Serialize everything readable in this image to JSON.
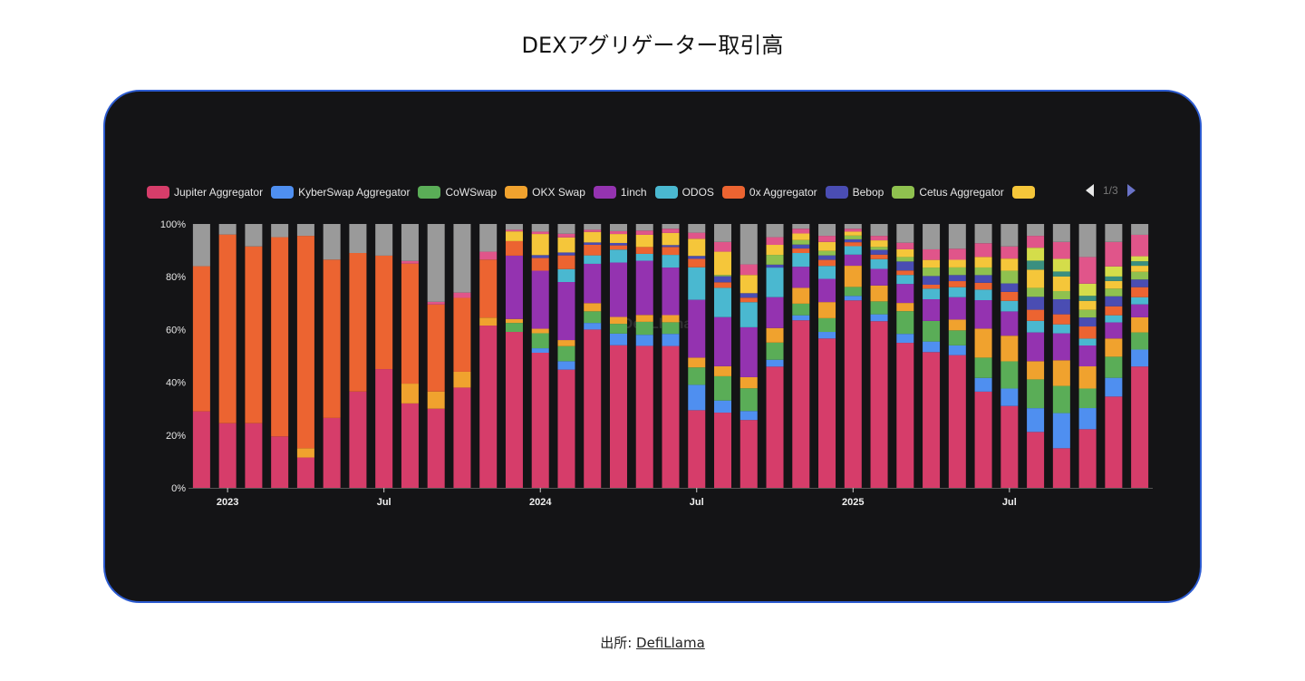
{
  "page": {
    "title": "DEXアグリゲーター取引高",
    "source_label": "出所:",
    "source_link": "DefiLlama"
  },
  "legend": {
    "page_indicator": "1/3",
    "items": [
      {
        "label": "Jupiter Aggregator",
        "color": "#d63d6a"
      },
      {
        "label": "KyberSwap Aggregator",
        "color": "#4f8ff0"
      },
      {
        "label": "CoWSwap",
        "color": "#5aad57"
      },
      {
        "label": "OKX Swap",
        "color": "#f0a22e"
      },
      {
        "label": "1inch",
        "color": "#9433b0"
      },
      {
        "label": "ODOS",
        "color": "#4ab8d0"
      },
      {
        "label": "0x Aggregator",
        "color": "#ec6431"
      },
      {
        "label": "Bebop",
        "color": "#4a4db3"
      },
      {
        "label": "Cetus Aggregator",
        "color": "#8fc14f"
      },
      {
        "label": "",
        "color": "#f5c63a"
      }
    ]
  },
  "chart_data": {
    "type": "bar",
    "stacked": true,
    "normalized_percent": true,
    "x": [
      "2022-12",
      "2023-01",
      "2023-02",
      "2023-03",
      "2023-04",
      "2023-05",
      "2023-06",
      "2023-07",
      "2023-08",
      "2023-09",
      "2023-10",
      "2023-11",
      "2023-12",
      "2024-01",
      "2024-02",
      "2024-03",
      "2024-04",
      "2024-05",
      "2024-06",
      "2024-07",
      "2024-08",
      "2024-09",
      "2024-10",
      "2024-11",
      "2024-12",
      "2025-01",
      "2025-02",
      "2025-03",
      "2025-04",
      "2025-05",
      "2025-06",
      "2025-07",
      "2025-08",
      "2025-09",
      "2025-10",
      "2025-11",
      "2025-12"
    ],
    "x_tick_labels": [
      {
        "at": "2023-01",
        "label": "2023"
      },
      {
        "at": "2023-07",
        "label": "Jul"
      },
      {
        "at": "2024-01",
        "label": "2024"
      },
      {
        "at": "2024-07",
        "label": "Jul"
      },
      {
        "at": "2025-01",
        "label": "2025"
      },
      {
        "at": "2025-07",
        "label": "Jul"
      }
    ],
    "y_tick_labels": [
      "0%",
      "20%",
      "40%",
      "60%",
      "80%",
      "100%"
    ],
    "ylim": [
      0,
      100
    ],
    "grid": false,
    "legend_position": "top",
    "series": [
      {
        "name": "Jupiter Aggregator",
        "color": "#d63d6a",
        "values": [
          29,
          24.5,
          24.5,
          19.5,
          11.5,
          26.5,
          36.5,
          45,
          32,
          30,
          38,
          61.5,
          59.1,
          51.2,
          44.8,
          60,
          54,
          53.7,
          53.7,
          29.4,
          28.5,
          25.7,
          45.9,
          63.5,
          56.6,
          70.9,
          63.1,
          54.9,
          51.4,
          50.4,
          36.5,
          31,
          21.2,
          15,
          22.2,
          34.6,
          45.9
        ]
      },
      {
        "name": "KyberSwap Aggregator",
        "color": "#4f8ff0",
        "values": [
          0,
          0,
          0,
          0,
          0,
          0,
          0,
          0,
          0,
          0,
          0,
          0,
          0,
          1.7,
          3.2,
          2.5,
          4.4,
          4.2,
          4.6,
          9.6,
          4.6,
          3.4,
          2.6,
          1.9,
          2.5,
          1.7,
          2.6,
          3.4,
          4,
          3.7,
          5.2,
          6.6,
          9,
          13.3,
          8,
          7.1,
          6.4
        ]
      },
      {
        "name": "CoWSwap",
        "color": "#5aad57",
        "values": [
          0,
          0,
          0,
          0,
          0,
          0,
          0,
          0,
          0,
          0,
          0,
          0,
          3.4,
          5.7,
          5.7,
          4.4,
          3.7,
          4.9,
          4.4,
          6.6,
          9.2,
          8.6,
          6.5,
          4.4,
          5.2,
          3.4,
          4.9,
          8.6,
          7.8,
          5.7,
          7.7,
          10.3,
          10.9,
          10.3,
          7.4,
          8,
          6.5
        ]
      },
      {
        "name": "OKX Swap",
        "color": "#f0a22e",
        "values": [
          0,
          0,
          0,
          0,
          3.5,
          0,
          0,
          0,
          7.5,
          6.5,
          6,
          3,
          1.5,
          1.7,
          2.3,
          3.1,
          2.6,
          2.6,
          2.7,
          3.7,
          3.8,
          4.2,
          5.5,
          6,
          6.1,
          8,
          6,
          3.1,
          0,
          4.1,
          11,
          9.7,
          6.9,
          9.7,
          8.4,
          6.9,
          5.7
        ]
      },
      {
        "name": "1inch",
        "color": "#9433b0",
        "values": [
          0,
          0,
          0,
          0,
          0,
          0,
          0,
          0,
          0,
          0,
          0,
          0,
          24,
          22,
          22,
          14.9,
          20.6,
          20.5,
          18,
          21.9,
          18.6,
          18.9,
          11.7,
          8,
          8.8,
          4.2,
          6.3,
          7.2,
          8.2,
          8.5,
          10.8,
          9.2,
          10.9,
          10.2,
          7.9,
          6.1,
          4.9
        ]
      },
      {
        "name": "ODOS",
        "color": "#4ab8d0",
        "values": [
          0,
          0,
          0,
          0,
          0,
          0,
          0,
          0,
          0,
          0,
          0,
          0,
          0,
          0,
          4.9,
          3.2,
          4.9,
          2.6,
          4.8,
          12.3,
          11.1,
          9.5,
          11.2,
          5.2,
          4.9,
          3.2,
          3.7,
          3.4,
          4,
          3.8,
          4,
          4,
          4.4,
          3.4,
          2.6,
          2.7,
          2.7
        ]
      },
      {
        "name": "0x Aggregator",
        "color": "#ec6431",
        "values": [
          55,
          71.5,
          67,
          75.5,
          80.5,
          60,
          52.5,
          43,
          45.5,
          33,
          28,
          22,
          5.5,
          4.8,
          5.2,
          4,
          1.6,
          2.6,
          3,
          3.2,
          2.1,
          1.7,
          0,
          1.7,
          2.3,
          1.5,
          1.7,
          1.7,
          1.5,
          2.3,
          2.6,
          3.4,
          4.2,
          3.8,
          4.6,
          3.4,
          3.8
        ]
      },
      {
        "name": "Bebop",
        "color": "#4a4db3",
        "values": [
          0,
          0,
          0,
          0,
          0,
          0,
          0,
          0,
          0,
          0,
          0,
          0,
          0,
          1.1,
          1.1,
          0.9,
          0.9,
          0,
          0.7,
          1.1,
          2.3,
          1.7,
          1.1,
          1.5,
          1.7,
          1.1,
          1.8,
          3.4,
          3.3,
          2.3,
          2.9,
          3.2,
          4.9,
          5.7,
          3.4,
          3.8,
          2.9
        ]
      },
      {
        "name": "Cetus Aggregator",
        "color": "#8fc14f",
        "values": [
          0,
          0,
          0,
          0,
          0,
          0,
          0,
          0,
          0,
          0,
          0,
          0,
          0,
          0,
          0,
          0,
          0,
          0,
          0,
          0,
          0.5,
          0,
          3.7,
          1.7,
          1.7,
          1.4,
          1.1,
          1.7,
          3.2,
          2.9,
          2.9,
          4.8,
          3.4,
          3.1,
          2.9,
          2.9,
          2.9
        ]
      },
      {
        "color": "#f5c63a",
        "values": [
          0,
          0,
          0,
          0,
          0,
          0,
          0,
          0,
          0,
          0,
          0,
          0,
          3.7,
          8,
          5.7,
          4,
          3.4,
          4.6,
          4.6,
          6.5,
          8.8,
          6.9,
          3.8,
          2.5,
          3.4,
          1.5,
          2.5,
          2.9,
          2.9,
          2.9,
          4,
          4.6,
          6.9,
          5.5,
          3.4,
          2.9,
          2.3
        ]
      },
      {
        "color": "#3a8f80",
        "values": [
          0,
          0,
          0,
          0,
          0,
          0,
          0,
          0,
          0,
          0,
          0,
          0,
          0,
          0,
          0,
          0,
          0,
          0,
          0,
          0,
          0,
          0,
          0,
          0,
          0,
          0,
          0,
          0,
          0,
          0,
          0,
          0,
          3.4,
          1.9,
          1.9,
          1.7,
          1.7
        ]
      },
      {
        "color": "#d4dd4a",
        "values": [
          0,
          0,
          0,
          0,
          0,
          0,
          0,
          0,
          0,
          0,
          0,
          0,
          0,
          0,
          0,
          0,
          0,
          0,
          0,
          0,
          0,
          0,
          0,
          0,
          0,
          0,
          0,
          0,
          0,
          0,
          0,
          0,
          4.9,
          4.8,
          4.6,
          3.8,
          1.9
        ]
      },
      {
        "color": "#e0558a",
        "values": [
          0,
          0,
          0,
          0,
          0,
          0,
          0,
          0,
          1,
          1,
          2,
          3,
          0.6,
          0.9,
          1.4,
          0.8,
          1.1,
          1.6,
          1.6,
          2.3,
          3.7,
          4,
          2.9,
          1.8,
          2.3,
          1.1,
          1.7,
          2.5,
          4,
          4.2,
          5.2,
          4.6,
          4.5,
          6.4,
          10.1,
          9.3,
          8.1
        ]
      },
      {
        "color": "#9a9a9a",
        "values": [
          16,
          4,
          8.5,
          5,
          4.5,
          13.5,
          11,
          12,
          14,
          29.5,
          26,
          10.5,
          2.2,
          2.9,
          3.7,
          2.2,
          2.7,
          2.5,
          1.8,
          3.3,
          6.8,
          15.3,
          5,
          1.8,
          4.5,
          1.8,
          4.5,
          7.1,
          9.6,
          9.4,
          7.3,
          8.5,
          4.5,
          6.8,
          12.5,
          6.8,
          4.1
        ]
      }
    ]
  }
}
